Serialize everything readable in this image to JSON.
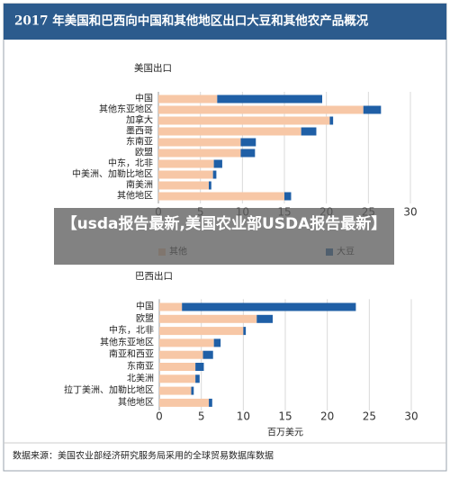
{
  "title": "2017 年美国和巴西向中国和其他地区出口大豆和其他农产品概况",
  "banner": "【usda报告最新,美国农业部USDA报告最新】",
  "source": "数据来源：美国农业部经济研究服务局采用的全球贸易数据库数据",
  "chart_data": [
    {
      "type": "stacked-barh",
      "title": "美国出口",
      "categories": [
        "中国",
        "其他东亚地区",
        "加拿大",
        "墨西哥",
        "东南亚",
        "欧盟",
        "中东，北非",
        "中美洲、加勒比地区",
        "南美洲",
        "其他地区"
      ],
      "series": [
        {
          "name": "其他",
          "color": "#f7c7a6",
          "values": [
            7.0,
            24.4,
            20.4,
            17.0,
            9.8,
            9.8,
            6.6,
            6.5,
            6.0,
            15.0
          ]
        },
        {
          "name": "大豆",
          "color": "#1f5fa6",
          "values": [
            12.5,
            2.1,
            0.4,
            1.8,
            1.8,
            1.7,
            1.0,
            0.4,
            0.3,
            0.8
          ]
        }
      ],
      "xlim": [
        0,
        30
      ],
      "xticks": [
        0,
        5,
        10,
        15,
        20,
        25,
        30
      ],
      "grid": true,
      "legend": "bottom"
    },
    {
      "type": "stacked-barh",
      "title": "巴西出口",
      "xlabel": "百万美元",
      "categories": [
        "中国",
        "欧盟",
        "中东，北非",
        "其他东亚地区",
        "南亚和西亚",
        "东南亚",
        "北美洲",
        "拉丁美洲、加勒比地区",
        "其他地区"
      ],
      "series": [
        {
          "name": "其他",
          "color": "#f7c7a6",
          "values": [
            2.7,
            11.6,
            10.0,
            6.5,
            5.2,
            4.3,
            4.3,
            3.8,
            5.9
          ]
        },
        {
          "name": "大豆",
          "color": "#1f5fa6",
          "values": [
            20.7,
            1.9,
            0.3,
            0.8,
            1.2,
            1.0,
            0.5,
            0.3,
            0.4
          ]
        }
      ],
      "xlim": [
        0,
        30
      ],
      "xticks": [
        0,
        5,
        10,
        15,
        20,
        25,
        30
      ],
      "grid": true,
      "legend": "none"
    }
  ]
}
